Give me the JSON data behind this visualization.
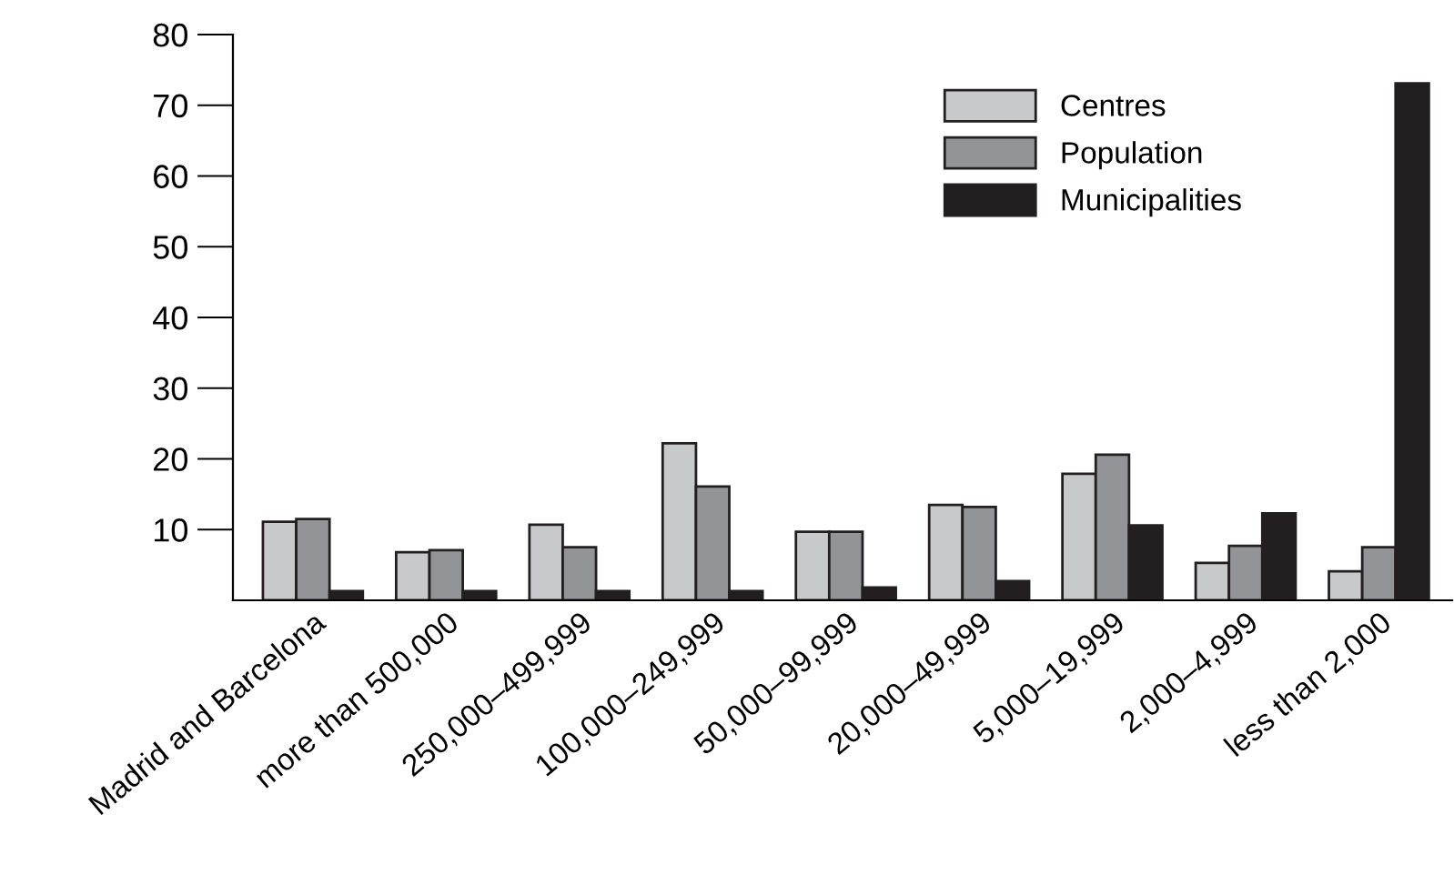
{
  "chart_data": {
    "type": "bar",
    "categories": [
      "Madrid and Barcelona",
      "more than 500,000",
      "250,000–499,999",
      "100,000–249,999",
      "50,000–99,999",
      "20,000–49,999",
      "5,000–19,999",
      "2,000–4,999",
      "less than 2,000"
    ],
    "series": [
      {
        "name": "Centres",
        "color": "#c8c9cb",
        "values": [
          11.1,
          6.8,
          10.7,
          22.2,
          9.7,
          13.5,
          17.9,
          5.3,
          4.1
        ]
      },
      {
        "name": "Population",
        "color": "#939497",
        "values": [
          11.5,
          7.1,
          7.5,
          16.1,
          9.7,
          13.2,
          20.6,
          7.7,
          7.5
        ]
      },
      {
        "name": "Municipalities",
        "color": "#231f20",
        "values": [
          1.3,
          1.3,
          1.3,
          1.3,
          1.8,
          2.7,
          10.6,
          12.3,
          73.1
        ]
      }
    ],
    "ylim": [
      0,
      80
    ],
    "yticks": [
      10,
      20,
      30,
      40,
      50,
      60,
      70,
      80
    ],
    "grid": false,
    "legend": "top right"
  }
}
